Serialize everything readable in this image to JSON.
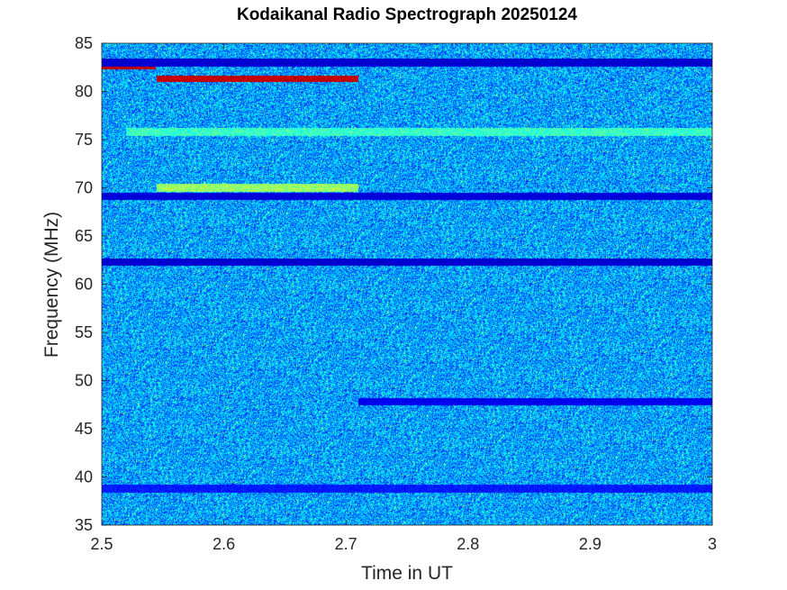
{
  "chart_data": {
    "type": "heatmap",
    "title": "Kodaikanal Radio Spectrograph  20250124",
    "xlabel": "Time in UT",
    "ylabel": "Frequency (MHz)",
    "xlim": [
      2.5,
      3.0
    ],
    "ylim": [
      35,
      85
    ],
    "xticks": [
      2.5,
      2.6,
      2.7,
      2.8,
      2.9,
      3.0
    ],
    "xtick_labels": [
      "2.5",
      "2.6",
      "2.7",
      "2.8",
      "2.9",
      "3"
    ],
    "yticks": [
      35,
      40,
      45,
      50,
      55,
      60,
      65,
      70,
      75,
      80,
      85
    ],
    "ytick_labels": [
      "35",
      "40",
      "45",
      "50",
      "55",
      "60",
      "65",
      "70",
      "75",
      "80",
      "85"
    ],
    "colormap": "jet",
    "background_level": 0.28,
    "features": [
      {
        "kind": "hot_band",
        "freq": 82.6,
        "t_start": 2.5,
        "t_end": 2.544,
        "level": 0.97
      },
      {
        "kind": "hot_band",
        "freq": 81.3,
        "t_start": 2.545,
        "t_end": 2.71,
        "level": 0.97
      },
      {
        "kind": "bright_band",
        "freq": 70.0,
        "t_start": 2.545,
        "t_end": 2.71,
        "level": 0.6
      },
      {
        "kind": "bright_band",
        "freq": 75.8,
        "t_start": 2.52,
        "t_end": 3.0,
        "level": 0.5
      },
      {
        "kind": "dark_band",
        "freq": 83.0,
        "t_start": 2.5,
        "t_end": 3.0,
        "level": 0.05
      },
      {
        "kind": "dark_band",
        "freq": 69.1,
        "t_start": 2.5,
        "t_end": 3.0,
        "level": 0.06
      },
      {
        "kind": "dark_band",
        "freq": 62.3,
        "t_start": 2.5,
        "t_end": 3.0,
        "level": 0.05
      },
      {
        "kind": "dark_band",
        "freq": 47.8,
        "t_start": 2.71,
        "t_end": 3.0,
        "level": 0.08
      },
      {
        "kind": "dark_band",
        "freq": 38.8,
        "t_start": 2.5,
        "t_end": 3.0,
        "level": 0.12
      }
    ]
  }
}
